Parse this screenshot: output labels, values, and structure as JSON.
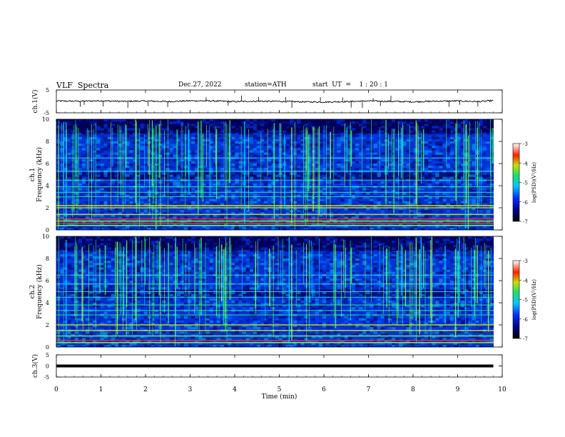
{
  "header": {
    "title": "VLF  Spectra",
    "date": "Dec.27, 2022",
    "station": "station=ATH",
    "start": "start  UT  =    1 : 20 : 1"
  },
  "chart_data": [
    {
      "type": "line",
      "ylabel": "ch.1(V)",
      "ylim": [
        -5,
        5
      ],
      "yticks": [
        "5",
        "-5"
      ],
      "x": [
        0,
        0.5,
        1,
        1.5,
        2,
        2.5,
        3,
        3.5,
        4,
        4.5,
        5,
        5.5,
        6,
        6.5,
        7,
        7.5,
        8,
        8.5,
        9,
        9.5,
        9.8
      ],
      "values": [
        0.2,
        0.1,
        0.3,
        0.0,
        0.2,
        -0.1,
        0.3,
        0.2,
        -0.1,
        0.1,
        0.0,
        -0.2,
        -0.3,
        -0.1,
        0.2,
        0.0,
        -0.2,
        0.1,
        0.2,
        -0.1,
        0.4
      ]
    },
    {
      "type": "heatmap",
      "ylabel": "ch.1\nFrequency (kHz)",
      "ylim": [
        0,
        10
      ],
      "yticks": [
        "0",
        "2",
        "4",
        "6",
        "8",
        "10"
      ],
      "colorbar": {
        "label": "log(PSD)(V²/Hz)",
        "range": [
          -7,
          -3
        ],
        "ticks": [
          "-3",
          "-4",
          "-5",
          "-6",
          "-7"
        ]
      },
      "bands_khz": [
        0.4,
        0.6,
        0.8,
        1.0,
        1.4,
        2.0,
        2.2,
        3.0,
        3.4,
        3.9,
        4.5,
        5.3,
        6.5
      ]
    },
    {
      "type": "heatmap",
      "ylabel": "ch.2\nFrequency (kHz)",
      "ylim": [
        0,
        10
      ],
      "yticks": [
        "0",
        "2",
        "4",
        "6",
        "8",
        "10"
      ],
      "colorbar": {
        "label": "log(PSD)(V²/Hz)",
        "range": [
          -7,
          -3
        ],
        "ticks": [
          "-3",
          "-4",
          "-5",
          "-6",
          "-7"
        ]
      },
      "bands_khz": [
        0.4,
        0.6,
        1.0,
        1.5,
        2.0,
        2.9,
        3.3,
        3.8,
        4.5,
        5.0,
        5.7,
        6.5
      ]
    },
    {
      "type": "line",
      "ylabel": "ch.3(V)",
      "ylim": [
        -5,
        5
      ],
      "yticks": [
        "5",
        "0",
        "-5"
      ],
      "x": [
        0,
        9.8
      ],
      "values": [
        0,
        0
      ]
    }
  ],
  "xaxis": {
    "label": "Time  (min)",
    "xlim": [
      0,
      10
    ],
    "ticks": [
      "0",
      "1",
      "2",
      "3",
      "4",
      "5",
      "6",
      "7",
      "8",
      "9",
      "10"
    ]
  }
}
